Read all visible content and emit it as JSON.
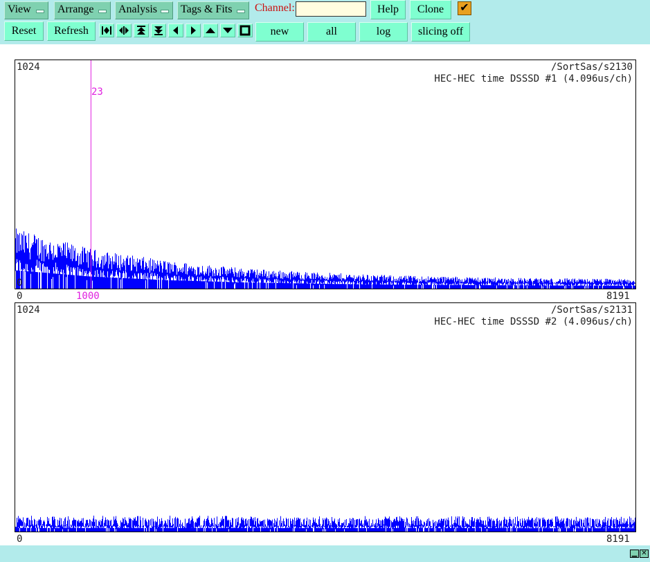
{
  "menus": {
    "view": "View",
    "arrange": "Arrange",
    "analysis": "Analysis",
    "tags_fits": "Tags & Fits"
  },
  "channel": {
    "label": "Channel:",
    "value": ""
  },
  "toolbar": {
    "help": "Help",
    "clone": "Clone",
    "reset": "Reset",
    "refresh": "Refresh",
    "new": "new",
    "all": "all",
    "log": "log",
    "slicing": "slicing off",
    "check_mark": "✔"
  },
  "nav_icons": [
    "expand-horizontal-icon",
    "contract-horizontal-icon",
    "double-up-icon",
    "double-down-icon",
    "left-icon",
    "right-icon",
    "up-icon",
    "down-icon",
    "full-view-icon"
  ],
  "colors": {
    "toolbar_bg": "#b2ebeb",
    "button": "#7fffd0",
    "menu_button": "#7fd1b0",
    "spectrum": "#0000ff",
    "marker": "#e020e0",
    "channel_label": "#cc1010"
  },
  "panels": [
    {
      "ymax_label": "1024",
      "ymin_label": "0",
      "path": "/SortSas/s2130",
      "title": "HEC-HEC time DSSSD #1 (4.096us/ch)",
      "xmin_label": "0",
      "xmax_label": "8191",
      "marker": {
        "channel_label": "1000",
        "count_label": "23"
      },
      "chart_data": {
        "type": "bar",
        "xlim": [
          0,
          8191
        ],
        "ylim": [
          0,
          1024
        ],
        "shape": "decay",
        "envelope": [
          [
            0,
            205
          ],
          [
            1000,
            135
          ],
          [
            2000,
            95
          ],
          [
            3000,
            70
          ],
          [
            4000,
            55
          ],
          [
            5000,
            45
          ],
          [
            6000,
            40
          ],
          [
            7000,
            35
          ],
          [
            8191,
            33
          ]
        ],
        "marker_x": 1000,
        "marker_value": 23
      }
    },
    {
      "ymax_label": "1024",
      "ymin_label": "0",
      "path": "/SortSas/s2131",
      "title": "HEC-HEC time DSSSD #2 (4.096us/ch)",
      "xmin_label": "0",
      "xmax_label": "8191",
      "chart_data": {
        "type": "bar",
        "xlim": [
          0,
          8191
        ],
        "ylim": [
          0,
          1024
        ],
        "shape": "flat",
        "envelope": [
          [
            0,
            40
          ],
          [
            8191,
            38
          ]
        ]
      }
    }
  ]
}
